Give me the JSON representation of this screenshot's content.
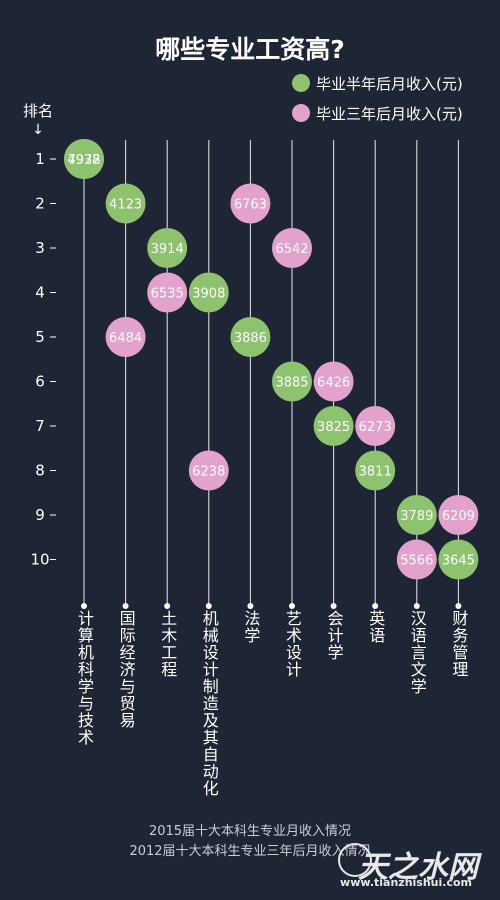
{
  "title": "哪些专业工资高?",
  "legend": [
    {
      "label": "毕业半年后月收入(元)",
      "color": "#8dc26f"
    },
    {
      "label": "毕业三年后月收入(元)",
      "color": "#e3a2cc"
    }
  ],
  "rank_header": "排名",
  "rank_arrow": "↓",
  "footer": {
    "line1": "2015届十大本科生专业月收入情况",
    "line2": "2012届十大本科生专业三年后月收入情况"
  },
  "watermark": {
    "brand": "天之水网",
    "url": "www.tianzhishui.com"
  },
  "chart_data": {
    "type": "scatter",
    "title": "哪些专业工资高?",
    "ylabel": "排名",
    "y_ticks": [
      "1",
      "2",
      "3",
      "4",
      "5",
      "6",
      "7",
      "8",
      "9",
      "10"
    ],
    "categories": [
      "计算机科学与技术",
      "国际经济与贸易",
      "土木工程",
      "机械设计制造及其自动化",
      "法学",
      "艺术设计",
      "会计学",
      "英语",
      "汉语言文学",
      "财务管理"
    ],
    "series": [
      {
        "name": "毕业半年后月收入(元)",
        "color": "#8dc26f",
        "points": [
          {
            "category": "计算机科学与技术",
            "rank": 1,
            "value": 4978
          },
          {
            "category": "国际经济与贸易",
            "rank": 2,
            "value": 4123
          },
          {
            "category": "土木工程",
            "rank": 3,
            "value": 3914
          },
          {
            "category": "机械设计制造及其自动化",
            "rank": 4,
            "value": 3908
          },
          {
            "category": "法学",
            "rank": 5,
            "value": 3886
          },
          {
            "category": "艺术设计",
            "rank": 6,
            "value": 3885
          },
          {
            "category": "会计学",
            "rank": 7,
            "value": 3825
          },
          {
            "category": "英语",
            "rank": 8,
            "value": 3811
          },
          {
            "category": "汉语言文学",
            "rank": 9,
            "value": 3789
          },
          {
            "category": "财务管理",
            "rank": 10,
            "value": 3645
          }
        ]
      },
      {
        "name": "毕业三年后月收入(元)",
        "color": "#e3a2cc",
        "points": [
          {
            "category": "计算机科学与技术",
            "rank": 1,
            "value": 7932
          },
          {
            "category": "法学",
            "rank": 2,
            "value": 6763
          },
          {
            "category": "艺术设计",
            "rank": 3,
            "value": 6542
          },
          {
            "category": "土木工程",
            "rank": 4,
            "value": 6535
          },
          {
            "category": "国际经济与贸易",
            "rank": 5,
            "value": 6484
          },
          {
            "category": "会计学",
            "rank": 6,
            "value": 6426
          },
          {
            "category": "英语",
            "rank": 7,
            "value": 6273
          },
          {
            "category": "机械设计制造及其自动化",
            "rank": 8,
            "value": 6238
          },
          {
            "category": "财务管理",
            "rank": 9,
            "value": 6209
          },
          {
            "category": "汉语言文学",
            "rank": 10,
            "value": 5566
          }
        ]
      }
    ]
  }
}
